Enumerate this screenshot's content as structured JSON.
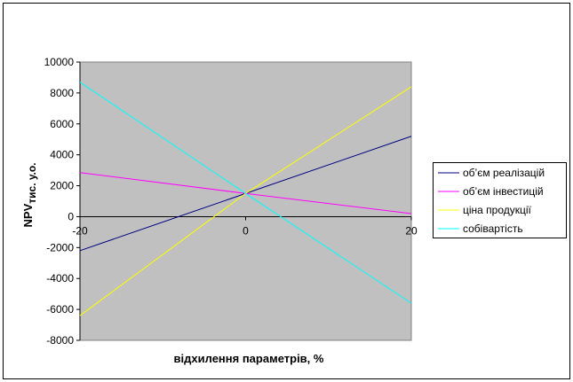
{
  "chart_data": {
    "type": "line",
    "x": [
      -20,
      0,
      20
    ],
    "xlim": [
      -20,
      20
    ],
    "xticks": [
      -20,
      0,
      20
    ],
    "ylim": [
      -8000,
      10000
    ],
    "yticks": [
      -8000,
      -6000,
      -4000,
      -2000,
      0,
      2000,
      4000,
      6000,
      8000,
      10000
    ],
    "xlabel": "відхилення параметрів, %",
    "ylabel": "NPV",
    "ylabel_sub": "тис. у.о.",
    "legend": "right",
    "plot_background": "#c0c0c0",
    "series": [
      {
        "name": "об’єм реалізацій",
        "color": "#000080",
        "values": [
          -2200,
          1500,
          5200
        ]
      },
      {
        "name": "об’єм інвестицій",
        "color": "#ff00ff",
        "values": [
          2850,
          1500,
          200
        ]
      },
      {
        "name": "ціна продукції",
        "color": "#ffff00",
        "values": [
          -6400,
          1500,
          8400
        ]
      },
      {
        "name": "собівартість",
        "color": "#00ffff",
        "values": [
          8700,
          1500,
          -5600
        ]
      }
    ]
  }
}
